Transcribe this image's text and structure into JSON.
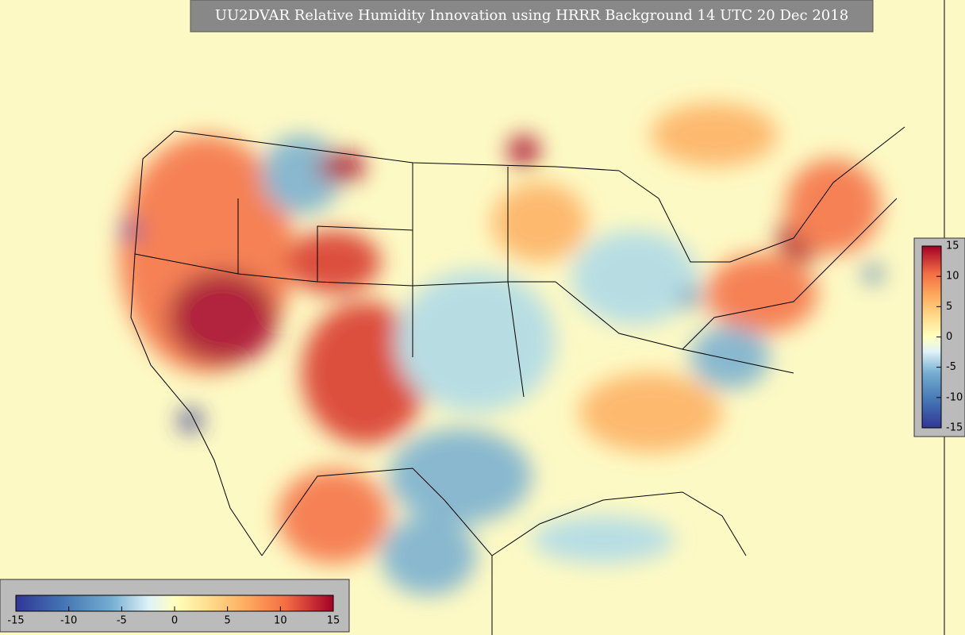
{
  "title": "UU2DVAR Relative Humidity Innovation using HRRR Background 14 UTC 20 Dec 2018",
  "colorbar_vertical": {
    "range": [
      -15,
      15
    ],
    "ticks": [
      15,
      10,
      5,
      0,
      -5,
      -10,
      -15
    ]
  },
  "colorbar_horizontal": {
    "range": [
      -15,
      15
    ],
    "ticks": [
      -15,
      -10,
      -5,
      0,
      5,
      10,
      15
    ]
  }
}
